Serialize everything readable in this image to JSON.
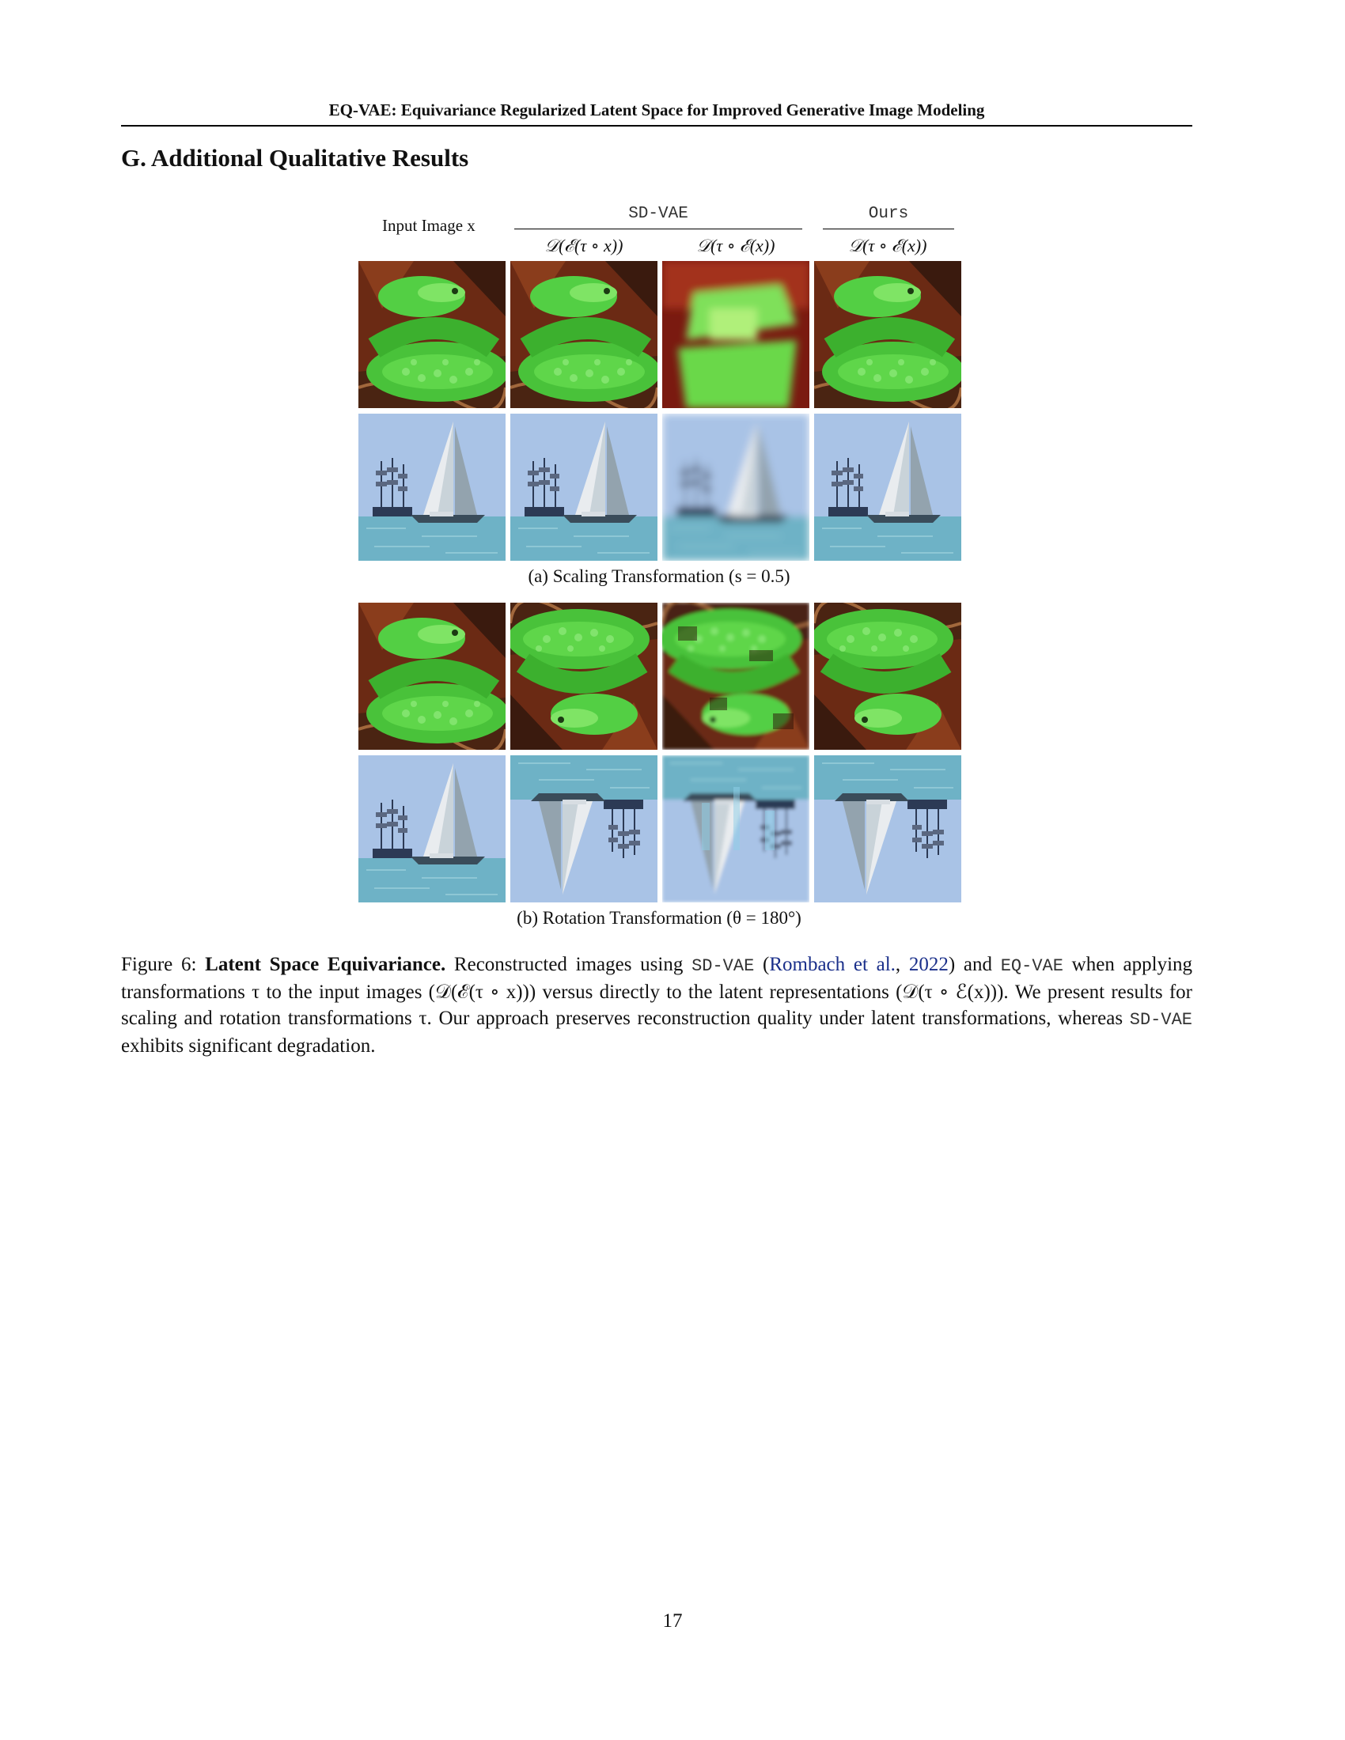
{
  "header": {
    "running_title": "EQ-VAE: Equivariance Regularized Latent Space for Improved Generative Image Modeling"
  },
  "section": {
    "title": "G. Additional Qualitative Results"
  },
  "figure": {
    "input_header": "Input Image x",
    "group_headers": {
      "sd_vae": "SD-VAE",
      "ours": "Ours"
    },
    "column_labels": [
      "𝒟(ℰ(τ ∘ x))",
      "𝒟(τ ∘ ℰ(x))",
      "𝒟(τ ∘ ℰ(x))"
    ],
    "subcaptions": {
      "scaling": "(a) Scaling Transformation (s = 0.5)",
      "rotation": "(b) Rotation Transformation (θ = 180°)"
    },
    "caption": {
      "label": "Figure 6: ",
      "bold_title": "Latent Space Equivariance.",
      "text_1": " Reconstructed images using ",
      "model_sd": "SD-VAE",
      "text_2": " (",
      "citation_author": "Rombach et al.",
      "text_3": ", ",
      "citation_year": "2022",
      "text_4": ") and ",
      "model_eq": "EQ-VAE",
      "text_5": " when applying transformations τ to the input images (𝒟(ℰ(τ ∘ x))) versus directly to the latent representations (𝒟(τ ∘ ℰ(x))). We present results for scaling and rotation transformations τ. Our approach preserves reconstruction quality under latent transformations, whereas ",
      "model_sd_2": "SD-VAE",
      "text_6": " exhibits significant degradation."
    }
  },
  "page_number": "17"
}
